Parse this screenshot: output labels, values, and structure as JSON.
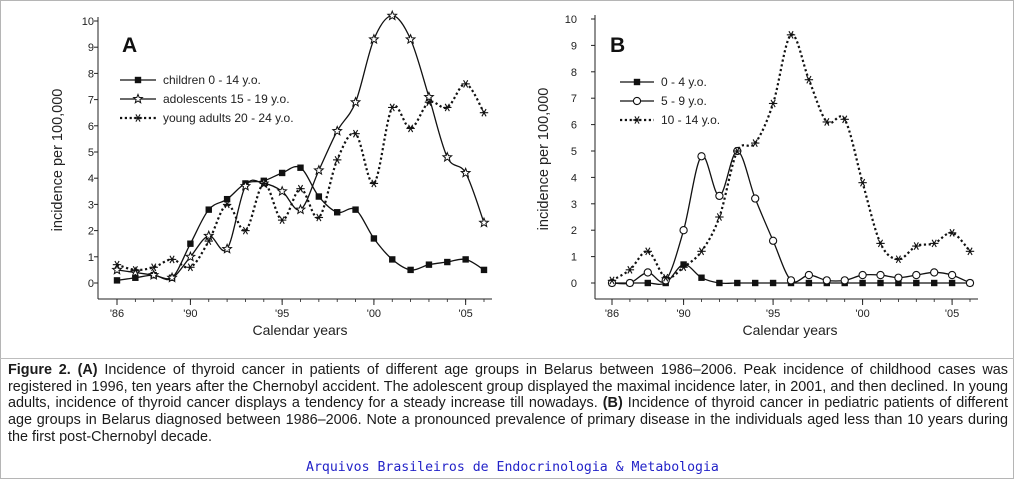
{
  "caption": {
    "label": "Figure 2.",
    "partA_label": "(A)",
    "partA_text": " Incidence of thyroid cancer in patients of different age groups in Belarus between 1986–2006. Peak incidence of childhood cases was registered in 1996, ten years after the Chernobyl accident. The adolescent group displayed the maximal incidence later, in 2001, and then declined. In young adults, incidence of thyroid cancer displays a tendency for a steady increase till nowadays. ",
    "partB_label": "(B)",
    "partB_text": " Incidence of thyroid cancer in pediatric patients of different age groups in Belarus diagnosed between 1986–2006. Note a pronounced prevalence of primary disease in the individuals aged less than 10 years during the first post-Chernobyl decade."
  },
  "footer": "Arquivos Brasileiros de Endocrinologia & Metabologia",
  "chart_data": [
    {
      "type": "line",
      "panel_label": "A",
      "xlabel": "Calendar years",
      "ylabel": "incidence per 100,000",
      "xlim": [
        1986,
        2006
      ],
      "ylim": [
        0,
        10
      ],
      "x_ticks": [
        1986,
        1990,
        1995,
        2000,
        2005
      ],
      "x_tick_labels": [
        "'86",
        "'90",
        "'95",
        "'00",
        "'05"
      ],
      "y_ticks": [
        0,
        1,
        2,
        3,
        4,
        5,
        6,
        7,
        8,
        9,
        10
      ],
      "y_tick_labels": [
        "0",
        "1",
        "2",
        "3",
        "4",
        "5",
        "6",
        "7",
        "8",
        "9",
        "10"
      ],
      "legend_position": "top-left",
      "x": [
        1986,
        1987,
        1988,
        1989,
        1990,
        1991,
        1992,
        1993,
        1994,
        1995,
        1996,
        1997,
        1998,
        1999,
        2000,
        2001,
        2002,
        2003,
        2004,
        2005,
        2006
      ],
      "series": [
        {
          "name": "children 0 - 14 y.o.",
          "marker": "filled-square",
          "linestyle": "solid",
          "values": [
            0.1,
            0.2,
            0.3,
            0.2,
            1.5,
            2.8,
            3.2,
            3.8,
            3.9,
            4.2,
            4.4,
            3.3,
            2.7,
            2.8,
            1.7,
            0.9,
            0.5,
            0.7,
            0.8,
            0.9,
            0.5
          ]
        },
        {
          "name": "adolescents 15 - 19 y.o.",
          "marker": "open-star",
          "linestyle": "solid",
          "values": [
            0.5,
            0.4,
            0.3,
            0.2,
            1.0,
            1.8,
            1.3,
            3.7,
            3.8,
            3.5,
            2.8,
            4.3,
            5.8,
            6.9,
            9.3,
            10.2,
            9.3,
            7.1,
            4.8,
            4.2,
            2.3
          ]
        },
        {
          "name": "young adults 20 - 24 y.o.",
          "marker": "asterisk",
          "linestyle": "dotted",
          "values": [
            0.7,
            0.5,
            0.6,
            0.9,
            0.6,
            1.6,
            3.0,
            2.0,
            3.8,
            2.4,
            3.6,
            2.5,
            4.7,
            5.7,
            3.8,
            6.7,
            5.9,
            6.9,
            6.7,
            7.6,
            6.5
          ]
        }
      ]
    },
    {
      "type": "line",
      "panel_label": "B",
      "xlabel": "Calendar years",
      "ylabel": "incidence per 100,000",
      "xlim": [
        1986,
        2006
      ],
      "ylim": [
        0,
        10
      ],
      "x_ticks": [
        1986,
        1990,
        1995,
        2000,
        2005
      ],
      "x_tick_labels": [
        "'86",
        "'90",
        "'95",
        "'00",
        "'05"
      ],
      "y_ticks": [
        0,
        1,
        2,
        3,
        4,
        5,
        6,
        7,
        8,
        9,
        10
      ],
      "y_tick_labels": [
        "0",
        "1",
        "2",
        "3",
        "4",
        "5",
        "6",
        "7",
        "8",
        "9",
        "10"
      ],
      "legend_position": "top-left",
      "x": [
        1986,
        1987,
        1988,
        1989,
        1990,
        1991,
        1992,
        1993,
        1994,
        1995,
        1996,
        1997,
        1998,
        1999,
        2000,
        2001,
        2002,
        2003,
        2004,
        2005,
        2006
      ],
      "series": [
        {
          "name": "0 - 4 y.o.",
          "marker": "filled-square",
          "linestyle": "solid",
          "values": [
            0.0,
            0.0,
            0.0,
            0.0,
            0.7,
            0.2,
            0.0,
            0.0,
            0.0,
            0.0,
            0.0,
            0.0,
            0.0,
            0.0,
            0.0,
            0.0,
            0.0,
            0.0,
            0.0,
            0.0,
            0.0
          ]
        },
        {
          "name": "5 - 9 y.o.",
          "marker": "open-circle",
          "linestyle": "solid",
          "values": [
            0.0,
            0.0,
            0.4,
            0.1,
            2.0,
            4.8,
            3.3,
            5.0,
            3.2,
            1.6,
            0.1,
            0.3,
            0.1,
            0.1,
            0.3,
            0.3,
            0.2,
            0.3,
            0.4,
            0.3,
            0.0
          ]
        },
        {
          "name": "10 - 14 y.o.",
          "marker": "asterisk",
          "linestyle": "dotted",
          "values": [
            0.1,
            0.5,
            1.2,
            0.2,
            0.6,
            1.2,
            2.5,
            5.0,
            5.3,
            6.8,
            9.4,
            7.7,
            6.1,
            6.2,
            3.8,
            1.5,
            0.9,
            1.4,
            1.5,
            1.9,
            1.2
          ]
        }
      ]
    }
  ]
}
